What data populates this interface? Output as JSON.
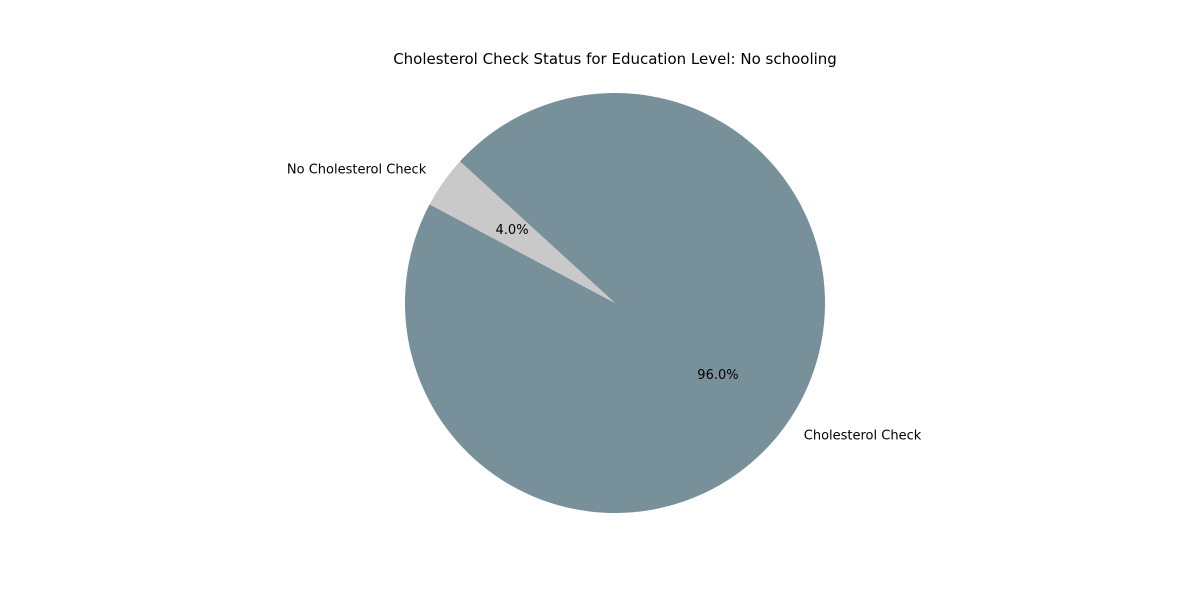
{
  "chart_data": {
    "type": "pie",
    "title": "Cholesterol Check Status for Education Level:  No schooling",
    "slices": [
      {
        "label": "Cholesterol Check",
        "value": 96.0,
        "pct_label": "96.0%",
        "color": "#78909a"
      },
      {
        "label": "No Cholesterol Check",
        "value": 4.0,
        "pct_label": "4.0%",
        "color": "#c9c9c9"
      }
    ],
    "start_angle_deg": 152,
    "direction": "counterclockwise"
  }
}
